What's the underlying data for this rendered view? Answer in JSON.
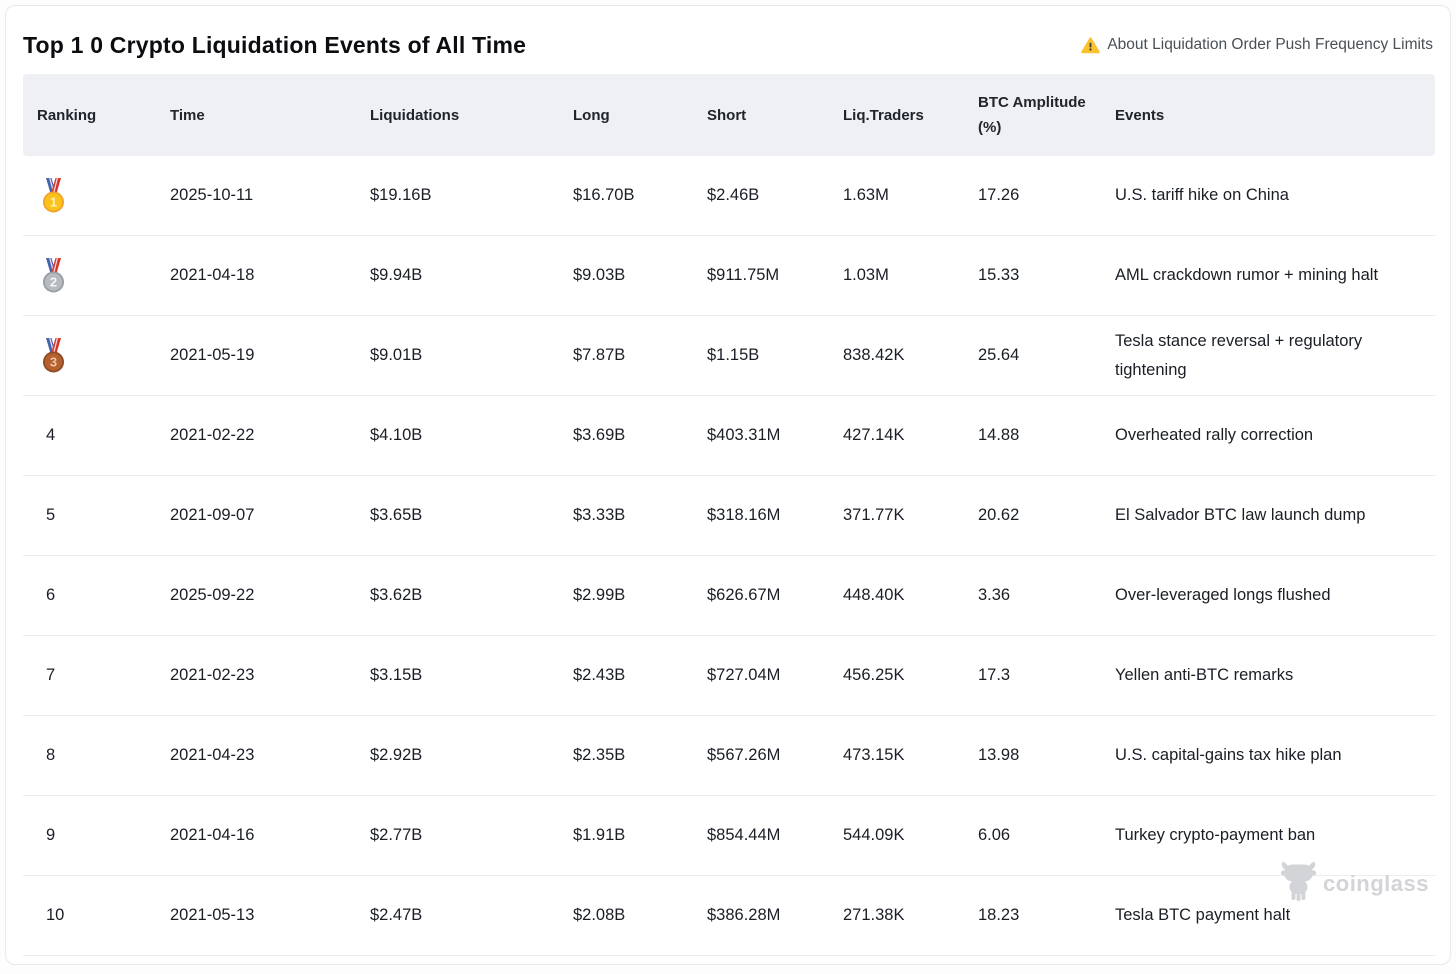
{
  "page": {
    "title": "Top 1 0 Crypto Liquidation Events of All Time",
    "notice": "About Liquidation Order Push Frequency Limits"
  },
  "table": {
    "columns": [
      {
        "key": "ranking",
        "label": "Ranking"
      },
      {
        "key": "time",
        "label": "Time"
      },
      {
        "key": "liquidations",
        "label": "Liquidations"
      },
      {
        "key": "long",
        "label": "Long"
      },
      {
        "key": "short",
        "label": "Short"
      },
      {
        "key": "liq_traders",
        "label": "Liq.Traders"
      },
      {
        "key": "btc_amplitude",
        "label": "BTC Amplitude (%)"
      },
      {
        "key": "events",
        "label": "Events"
      }
    ],
    "rows": [
      {
        "ranking": "1",
        "medal": "gold",
        "time": "2025-10-11",
        "liquidations": "$19.16B",
        "long": "$16.70B",
        "short": "$2.46B",
        "liq_traders": "1.63M",
        "btc_amplitude": "17.26",
        "events": "U.S. tariff hike on China"
      },
      {
        "ranking": "2",
        "medal": "silver",
        "time": "2021-04-18",
        "liquidations": "$9.94B",
        "long": "$9.03B",
        "short": "$911.75M",
        "liq_traders": "1.03M",
        "btc_amplitude": "15.33",
        "events": "AML crackdown rumor + mining halt"
      },
      {
        "ranking": "3",
        "medal": "bronze",
        "time": "2021-05-19",
        "liquidations": "$9.01B",
        "long": "$7.87B",
        "short": "$1.15B",
        "liq_traders": "838.42K",
        "btc_amplitude": "25.64",
        "events": "Tesla stance reversal + regulatory tightening"
      },
      {
        "ranking": "4",
        "medal": null,
        "time": "2021-02-22",
        "liquidations": "$4.10B",
        "long": "$3.69B",
        "short": "$403.31M",
        "liq_traders": "427.14K",
        "btc_amplitude": "14.88",
        "events": "Overheated rally correction"
      },
      {
        "ranking": "5",
        "medal": null,
        "time": "2021-09-07",
        "liquidations": "$3.65B",
        "long": "$3.33B",
        "short": "$318.16M",
        "liq_traders": "371.77K",
        "btc_amplitude": "20.62",
        "events": "El Salvador BTC law launch dump"
      },
      {
        "ranking": "6",
        "medal": null,
        "time": "2025-09-22",
        "liquidations": "$3.62B",
        "long": "$2.99B",
        "short": "$626.67M",
        "liq_traders": "448.40K",
        "btc_amplitude": "3.36",
        "events": "Over-leveraged longs flushed"
      },
      {
        "ranking": "7",
        "medal": null,
        "time": "2021-02-23",
        "liquidations": "$3.15B",
        "long": "$2.43B",
        "short": "$727.04M",
        "liq_traders": "456.25K",
        "btc_amplitude": "17.3",
        "events": "Yellen anti-BTC remarks"
      },
      {
        "ranking": "8",
        "medal": null,
        "time": "2021-04-23",
        "liquidations": "$2.92B",
        "long": "$2.35B",
        "short": "$567.26M",
        "liq_traders": "473.15K",
        "btc_amplitude": "13.98",
        "events": "U.S. capital-gains tax hike plan"
      },
      {
        "ranking": "9",
        "medal": null,
        "time": "2021-04-16",
        "liquidations": "$2.77B",
        "long": "$1.91B",
        "short": "$854.44M",
        "liq_traders": "544.09K",
        "btc_amplitude": "6.06",
        "events": "Turkey crypto-payment ban"
      },
      {
        "ranking": "10",
        "medal": null,
        "time": "2021-05-13",
        "liquidations": "$2.47B",
        "long": "$2.08B",
        "short": "$386.28M",
        "liq_traders": "271.38K",
        "btc_amplitude": "18.23",
        "events": "Tesla BTC payment halt"
      }
    ]
  },
  "medals": {
    "gold": {
      "fill": "#fcc21c",
      "rim": "#f0a32a",
      "ribbon_left": "#4a63ae",
      "ribbon_right": "#d7362b",
      "number_color": "#fff0bd"
    },
    "silver": {
      "fill": "#b7bbc0",
      "rim": "#979ea6",
      "ribbon_left": "#4a63ae",
      "ribbon_right": "#d7362b",
      "number_color": "#f3f5f7"
    },
    "bronze": {
      "fill": "#b4602f",
      "rim": "#8e4a24",
      "ribbon_left": "#4a63ae",
      "ribbon_right": "#d7362b",
      "number_color": "#f2c6a4"
    }
  },
  "watermark": {
    "label": "coinglass"
  },
  "colors": {
    "warning_yellow": "#f9c22e",
    "warning_glyph": "#45413c",
    "header_bg": "#eef0f3",
    "row_divider": "#ebedf0",
    "watermark_gray": "#d2d4d7"
  }
}
